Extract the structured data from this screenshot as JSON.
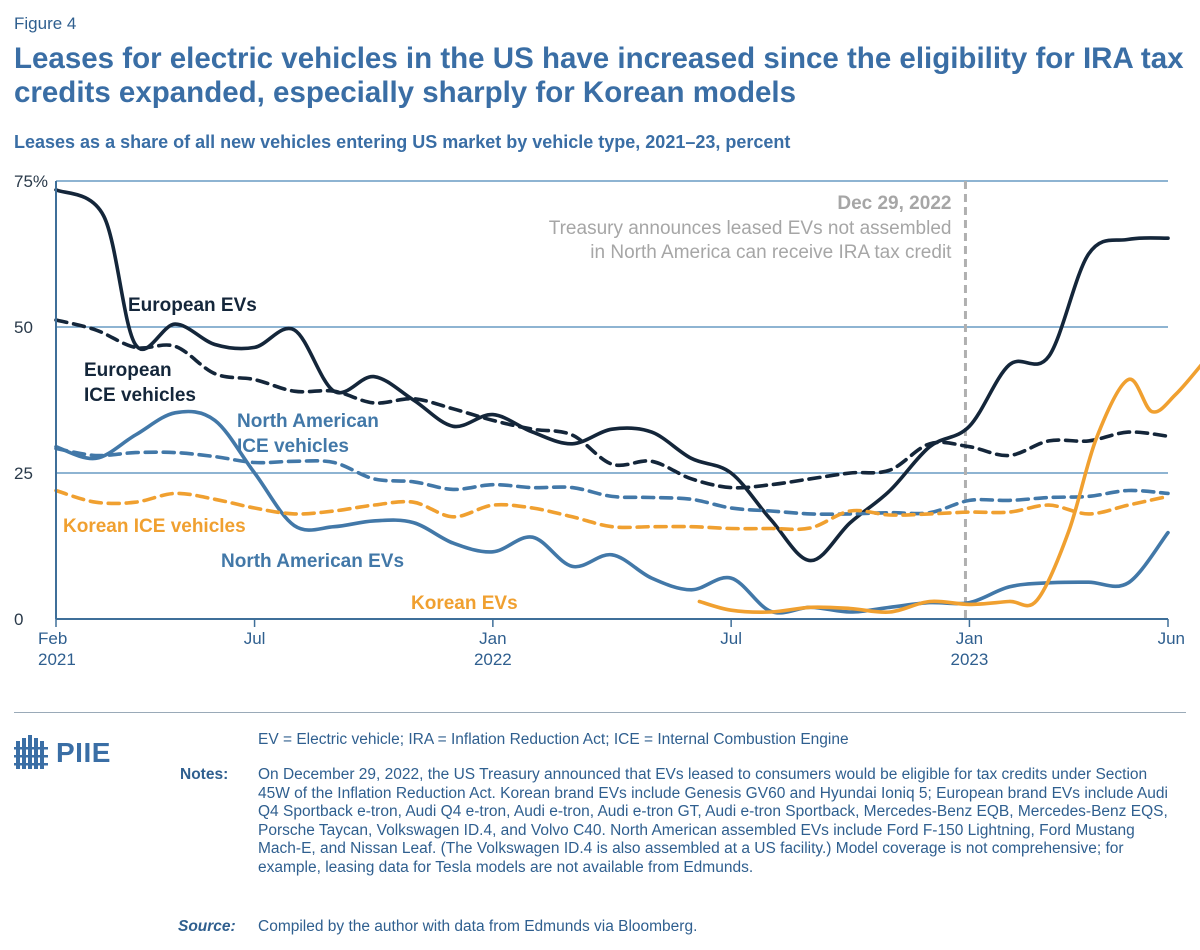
{
  "figure_label": "Figure 4",
  "title": "Leases for electric vehicles in the US have increased since the eligibility for IRA tax credits expanded, especially sharply for Korean models",
  "subtitle": "Leases as a share of all new vehicles entering US market by vehicle type, 2021–23, percent",
  "chart_data": {
    "type": "line",
    "y_range": [
      0,
      75
    ],
    "y_ticks": [
      {
        "value": 0,
        "label": "0"
      },
      {
        "value": 25,
        "label": "25"
      },
      {
        "value": 50,
        "label": "50"
      },
      {
        "value": 75,
        "label": "75%"
      }
    ],
    "x_range": [
      0,
      28
    ],
    "x_unit": "months since Feb 2021",
    "x_ticks": [
      {
        "value": 0,
        "label": "Feb",
        "sublabel": "2021"
      },
      {
        "value": 5,
        "label": "Jul",
        "sublabel": ""
      },
      {
        "value": 11,
        "label": "Jan",
        "sublabel": "2022"
      },
      {
        "value": 17,
        "label": "Jul",
        "sublabel": ""
      },
      {
        "value": 23,
        "label": "Jan",
        "sublabel": "2023"
      },
      {
        "value": 28,
        "label": "Jun",
        "sublabel": ""
      }
    ],
    "annotation": {
      "x": 22.9,
      "date": "Dec 29, 2022",
      "line1": "Treasury announces leased EVs not assembled",
      "line2": "in North America can receive IRA tax credit"
    },
    "series": [
      {
        "name": "European EVs",
        "color": "#14263a",
        "dash": false,
        "values": [
          [
            0,
            73.5
          ],
          [
            1.2,
            69
          ],
          [
            2,
            47
          ],
          [
            3,
            50.5
          ],
          [
            4,
            47
          ],
          [
            5,
            46.5
          ],
          [
            6,
            49.5
          ],
          [
            7,
            39
          ],
          [
            8,
            41.5
          ],
          [
            9,
            37.5
          ],
          [
            10,
            33
          ],
          [
            11,
            35
          ],
          [
            12,
            32
          ],
          [
            13,
            30
          ],
          [
            14,
            32.5
          ],
          [
            15,
            32
          ],
          [
            16,
            27.5
          ],
          [
            17,
            25
          ],
          [
            18,
            17
          ],
          [
            19,
            10
          ],
          [
            20,
            16.5
          ],
          [
            21,
            22
          ],
          [
            22,
            29.5
          ],
          [
            23,
            33
          ],
          [
            24,
            43.5
          ],
          [
            25,
            45
          ],
          [
            26,
            62.5
          ],
          [
            27,
            65
          ],
          [
            28,
            65.2
          ]
        ]
      },
      {
        "name": "European ICE vehicles",
        "color": "#14263a",
        "dash": true,
        "values": [
          [
            0,
            51.2
          ],
          [
            1,
            49.5
          ],
          [
            2,
            46.5
          ],
          [
            3,
            46.7
          ],
          [
            4,
            42
          ],
          [
            5,
            41
          ],
          [
            6,
            39
          ],
          [
            7,
            39
          ],
          [
            8,
            37
          ],
          [
            9,
            37.7
          ],
          [
            10,
            36
          ],
          [
            11,
            34
          ],
          [
            12,
            32.5
          ],
          [
            13,
            31.5
          ],
          [
            14,
            26.5
          ],
          [
            15,
            27
          ],
          [
            16,
            24
          ],
          [
            17,
            22.5
          ],
          [
            18,
            23
          ],
          [
            19,
            24
          ],
          [
            20,
            25
          ],
          [
            21,
            25.5
          ],
          [
            22,
            30
          ],
          [
            23,
            29.5
          ],
          [
            24,
            28
          ],
          [
            25,
            30.5
          ],
          [
            26,
            30.5
          ],
          [
            27,
            32
          ],
          [
            28,
            31.3
          ]
        ]
      },
      {
        "name": "North American ICE vehicles",
        "color": "#4278a8",
        "dash": true,
        "values": [
          [
            0,
            29.2
          ],
          [
            1,
            28
          ],
          [
            2,
            28.5
          ],
          [
            3,
            28.5
          ],
          [
            4,
            27.8
          ],
          [
            5,
            26.8
          ],
          [
            6,
            27
          ],
          [
            7,
            26.8
          ],
          [
            8,
            24
          ],
          [
            9,
            23.5
          ],
          [
            10,
            22.2
          ],
          [
            11,
            23
          ],
          [
            12,
            22.5
          ],
          [
            13,
            22.5
          ],
          [
            14,
            21
          ],
          [
            15,
            20.8
          ],
          [
            16,
            20.5
          ],
          [
            17,
            19
          ],
          [
            18,
            18.5
          ],
          [
            19,
            18
          ],
          [
            20,
            18
          ],
          [
            21,
            18.2
          ],
          [
            22,
            18.2
          ],
          [
            23,
            20.3
          ],
          [
            24,
            20.3
          ],
          [
            25,
            20.8
          ],
          [
            26,
            21
          ],
          [
            27,
            22
          ],
          [
            28,
            21.5
          ]
        ]
      },
      {
        "name": "North American EVs",
        "color": "#4278a8",
        "dash": false,
        "values": [
          [
            0,
            29.5
          ],
          [
            1,
            27.5
          ],
          [
            2,
            31.5
          ],
          [
            3,
            35.3
          ],
          [
            4,
            34
          ],
          [
            5,
            25
          ],
          [
            6,
            16
          ],
          [
            7,
            15.8
          ],
          [
            8,
            16.8
          ],
          [
            9,
            16.5
          ],
          [
            10,
            13
          ],
          [
            11,
            11.5
          ],
          [
            12,
            14
          ],
          [
            13,
            9
          ],
          [
            14,
            11
          ],
          [
            15,
            7
          ],
          [
            16,
            5
          ],
          [
            17,
            7
          ],
          [
            18,
            1.3
          ],
          [
            19,
            2
          ],
          [
            20,
            1.2
          ],
          [
            21,
            2
          ],
          [
            22,
            2.8
          ],
          [
            23,
            2.8
          ],
          [
            24,
            5.5
          ],
          [
            25,
            6.2
          ],
          [
            26,
            6.3
          ],
          [
            27,
            6.2
          ],
          [
            28,
            14.8
          ]
        ]
      },
      {
        "name": "Korean ICE vehicles",
        "color": "#f0a030",
        "dash": true,
        "values": [
          [
            0,
            22
          ],
          [
            1,
            20
          ],
          [
            2,
            20
          ],
          [
            3,
            21.5
          ],
          [
            4,
            20.5
          ],
          [
            5,
            19
          ],
          [
            6,
            18
          ],
          [
            7,
            18.5
          ],
          [
            8,
            19.5
          ],
          [
            9,
            20
          ],
          [
            10,
            17.5
          ],
          [
            11,
            19.5
          ],
          [
            12,
            19
          ],
          [
            13,
            17.5
          ],
          [
            14,
            15.8
          ],
          [
            15,
            15.8
          ],
          [
            16,
            15.8
          ],
          [
            17,
            15.5
          ],
          [
            18,
            15.5
          ],
          [
            19,
            15.6
          ],
          [
            20,
            18.5
          ],
          [
            21,
            17.8
          ],
          [
            22,
            18
          ],
          [
            23,
            18.3
          ],
          [
            24,
            18.3
          ],
          [
            25,
            19.5
          ],
          [
            26,
            18
          ],
          [
            27,
            19.5
          ],
          [
            28,
            21
          ]
        ]
      },
      {
        "name": "Korean EVs",
        "color": "#f0a030",
        "dash": false,
        "values": [
          [
            16.2,
            3
          ],
          [
            17,
            1.5
          ],
          [
            18,
            1.2
          ],
          [
            19,
            2
          ],
          [
            20,
            1.8
          ],
          [
            21,
            1.2
          ],
          [
            22,
            3
          ],
          [
            23,
            2.5
          ],
          [
            24,
            3
          ],
          [
            24.7,
            3.2
          ],
          [
            25.5,
            15
          ],
          [
            26.2,
            31
          ],
          [
            27,
            41
          ],
          [
            27.6,
            35.5
          ],
          [
            28.2,
            38.5
          ],
          [
            28.9,
            44
          ]
        ]
      }
    ],
    "labels": {
      "european_evs": "European EVs",
      "european_ice_1": "European",
      "european_ice_2": "ICE vehicles",
      "na_ice_1": "North American",
      "na_ice_2": "ICE vehicles",
      "korean_ice": "Korean ICE vehicles",
      "na_evs": "North American EVs",
      "korean_evs": "Korean EVs"
    }
  },
  "logo": {
    "text": "PIIE"
  },
  "footer": {
    "abbreviations": "EV = Electric vehicle; IRA = Inflation Reduction Act; ICE = Internal Combustion Engine",
    "notes_label": "Notes:",
    "notes": "On December 29, 2022, the US Treasury announced that EVs leased to consumers would be eligible for tax credits under Section 45W of the Inflation Reduction Act. Korean brand EVs include Genesis GV60 and Hyundai Ioniq 5; European brand EVs include Audi Q4 Sportback e-tron, Audi Q4 e-tron, Audi e-tron, Audi e-tron GT, Audi e-tron Sportback, Mercedes-Benz EQB, Mercedes-Benz EQS, Porsche Taycan, Volkswagen ID.4, and Volvo C40. North American assembled EVs include Ford F-150 Lightning, Ford Mustang Mach-E, and Nissan Leaf. (The Volkswagen ID.4 is also assembled at a US facility.) Model coverage is not comprehensive; for example, leasing data for Tesla models are not available from Edmunds.",
    "source_label": "Source:",
    "source": "Compiled by the author with data from Edmunds via Bloomberg."
  }
}
